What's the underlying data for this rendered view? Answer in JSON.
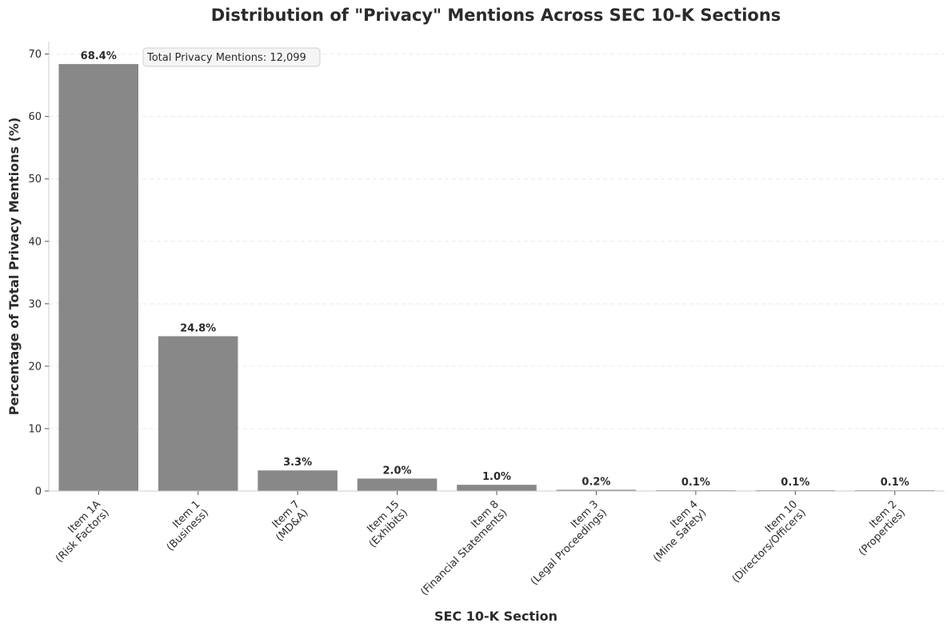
{
  "chart_data": {
    "type": "bar",
    "title": "Distribution of \"Privacy\" Mentions Across SEC 10-K Sections",
    "xlabel": "SEC 10-K Section",
    "ylabel": "Percentage of Total Privacy Mentions (%)",
    "categories": [
      [
        "Item 1A",
        "(Risk Factors)"
      ],
      [
        "Item 1",
        "(Business)"
      ],
      [
        "Item 7",
        "(MD&A)"
      ],
      [
        "Item 15",
        "(Exhibits)"
      ],
      [
        "Item 8",
        "(Financial Statements)"
      ],
      [
        "Item 3",
        "(Legal Proceedings)"
      ],
      [
        "Item 4",
        "(Mine Safety)"
      ],
      [
        "Item 10",
        "(Directors/Officers)"
      ],
      [
        "Item 2",
        "(Properties)"
      ]
    ],
    "values": [
      68.4,
      24.8,
      3.3,
      2.0,
      1.0,
      0.2,
      0.1,
      0.1,
      0.1
    ],
    "value_labels": [
      "68.4%",
      "24.8%",
      "3.3%",
      "2.0%",
      "1.0%",
      "0.2%",
      "0.1%",
      "0.1%",
      "0.1%"
    ],
    "ylim": [
      0,
      72
    ],
    "yticks": [
      0,
      10,
      20,
      30,
      40,
      50,
      60,
      70
    ],
    "grid": "horizontal dashed",
    "bar_color": "#888888",
    "annotation": "Total Privacy Mentions: 12,099"
  }
}
